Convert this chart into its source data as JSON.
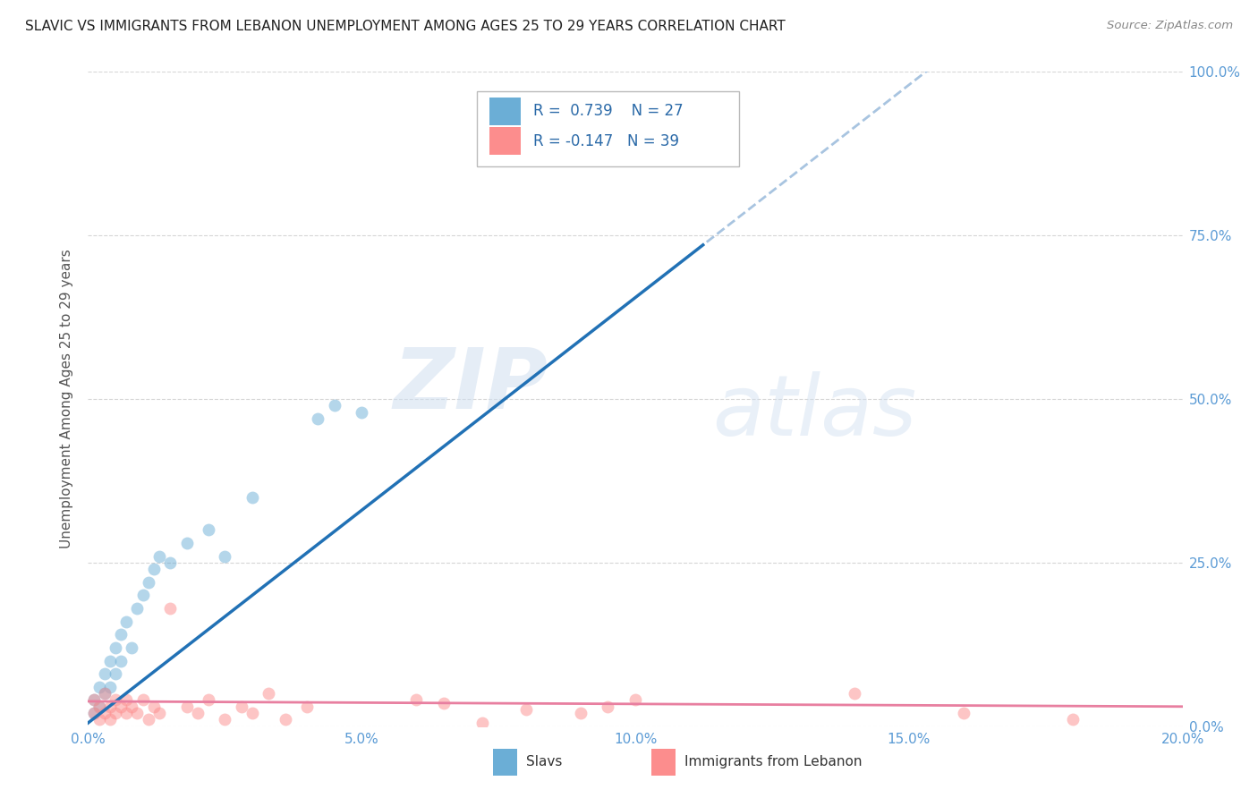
{
  "title": "SLAVIC VS IMMIGRANTS FROM LEBANON UNEMPLOYMENT AMONG AGES 25 TO 29 YEARS CORRELATION CHART",
  "source": "Source: ZipAtlas.com",
  "xlabel_ticks": [
    "0.0%",
    "5.0%",
    "10.0%",
    "15.0%",
    "20.0%"
  ],
  "xlabel_vals": [
    0.0,
    0.05,
    0.1,
    0.15,
    0.2
  ],
  "ylabel_ticks_right": [
    "0.0%",
    "25.0%",
    "50.0%",
    "75.0%",
    "100.0%"
  ],
  "ylabel_vals": [
    0.0,
    0.25,
    0.5,
    0.75,
    1.0
  ],
  "ylabel_label": "Unemployment Among Ages 25 to 29 years",
  "xlim": [
    0.0,
    0.2
  ],
  "ylim": [
    0.0,
    1.0
  ],
  "slavs_x": [
    0.001,
    0.001,
    0.002,
    0.002,
    0.003,
    0.003,
    0.004,
    0.004,
    0.005,
    0.005,
    0.006,
    0.006,
    0.007,
    0.008,
    0.009,
    0.01,
    0.011,
    0.012,
    0.013,
    0.015,
    0.018,
    0.022,
    0.025,
    0.03,
    0.042,
    0.045,
    0.05
  ],
  "slavs_y": [
    0.02,
    0.04,
    0.03,
    0.06,
    0.05,
    0.08,
    0.06,
    0.1,
    0.08,
    0.12,
    0.1,
    0.14,
    0.16,
    0.12,
    0.18,
    0.2,
    0.22,
    0.24,
    0.26,
    0.25,
    0.28,
    0.3,
    0.26,
    0.35,
    0.47,
    0.49,
    0.48
  ],
  "lebanon_x": [
    0.001,
    0.001,
    0.002,
    0.002,
    0.003,
    0.003,
    0.004,
    0.004,
    0.005,
    0.005,
    0.006,
    0.007,
    0.007,
    0.008,
    0.009,
    0.01,
    0.011,
    0.012,
    0.013,
    0.015,
    0.018,
    0.02,
    0.022,
    0.025,
    0.028,
    0.03,
    0.033,
    0.036,
    0.04,
    0.06,
    0.065,
    0.072,
    0.08,
    0.09,
    0.095,
    0.1,
    0.14,
    0.16,
    0.18
  ],
  "lebanon_y": [
    0.02,
    0.04,
    0.03,
    0.01,
    0.05,
    0.02,
    0.03,
    0.01,
    0.04,
    0.02,
    0.03,
    0.04,
    0.02,
    0.03,
    0.02,
    0.04,
    0.01,
    0.03,
    0.02,
    0.18,
    0.03,
    0.02,
    0.04,
    0.01,
    0.03,
    0.02,
    0.05,
    0.01,
    0.03,
    0.04,
    0.035,
    0.005,
    0.025,
    0.02,
    0.03,
    0.04,
    0.05,
    0.02,
    0.01
  ],
  "slavs_color": "#6baed6",
  "lebanon_color": "#fc8d8d",
  "slavs_line_color": "#2171b5",
  "lebanon_line_color": "#e87fa0",
  "diag_line_color": "#a8c4e0",
  "line_slope_slavs": 6.5,
  "line_intercept_slavs": 0.005,
  "line_slope_lebanon": -0.04,
  "line_intercept_lebanon": 0.038,
  "line_solid_end": 0.113,
  "R_slavs": 0.739,
  "N_slavs": 27,
  "R_lebanon": -0.147,
  "N_lebanon": 39,
  "legend_slavs": "Slavs",
  "legend_lebanon": "Immigrants from Lebanon",
  "marker_size": 100,
  "marker_alpha": 0.5,
  "watermark_zip": "ZIP",
  "watermark_atlas": "atlas",
  "background_color": "#ffffff",
  "grid_color": "#cccccc"
}
